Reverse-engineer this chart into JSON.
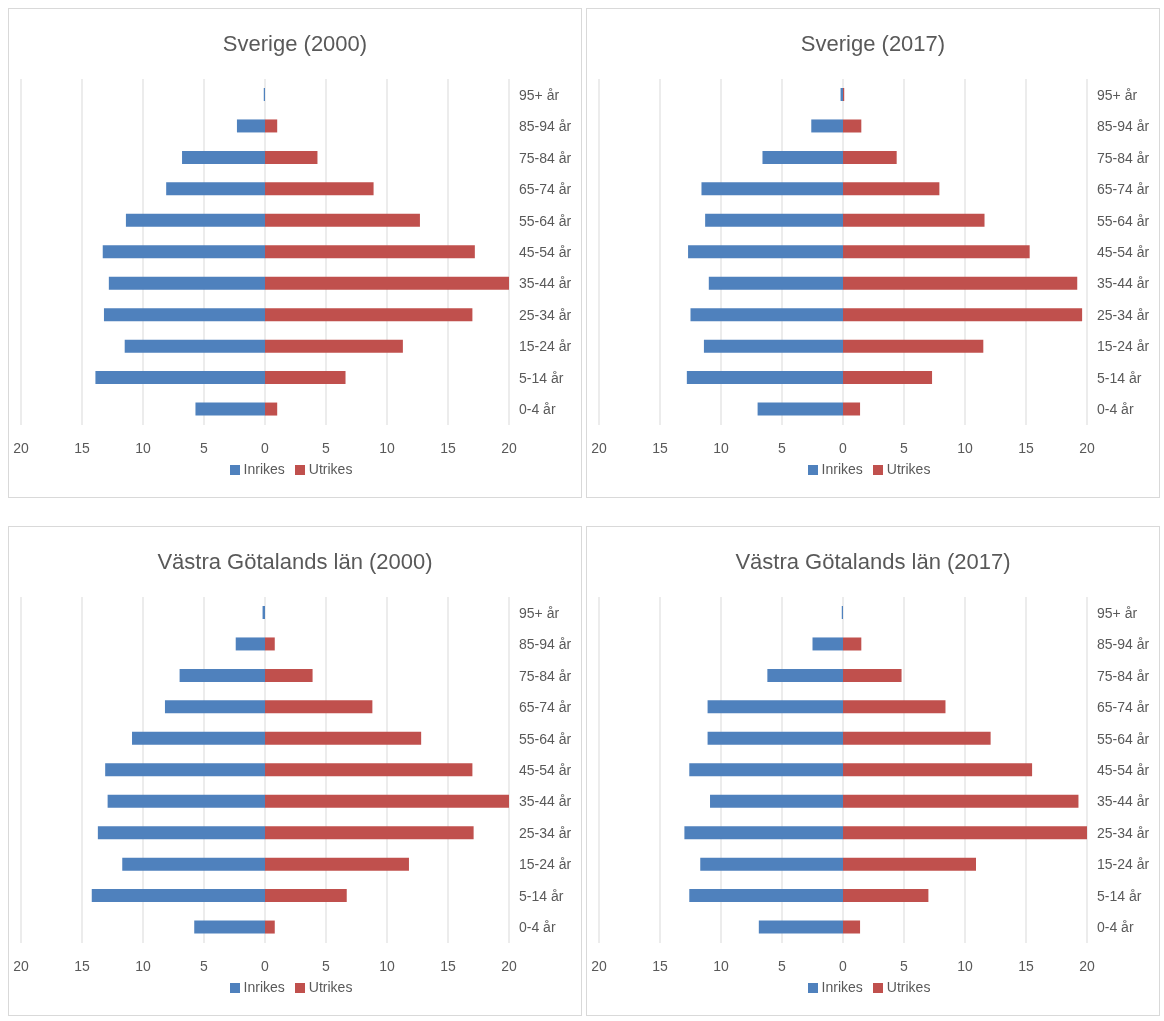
{
  "chart_data": [
    {
      "type": "bar",
      "orientation": "horizontal",
      "stacked": true,
      "title": "Sverige (2000)",
      "categories": [
        "95+ år",
        "85-94 år",
        "75-84 år",
        "65-74 år",
        "55-64 år",
        "45-54 år",
        "35-44 år",
        "25-34 år",
        "15-24 år",
        "5-14 år",
        "0-4 år"
      ],
      "series": [
        {
          "name": "Inrikes",
          "color": "#4f81bd",
          "values": [
            -0.1,
            -2.3,
            -6.8,
            -8.1,
            -11.4,
            -13.3,
            -12.8,
            -13.2,
            -11.5,
            -13.9,
            -5.7
          ]
        },
        {
          "name": "Utrikes",
          "color": "#c0504d",
          "values": [
            0,
            1.0,
            4.3,
            8.9,
            12.7,
            17.2,
            20.0,
            17.0,
            11.3,
            6.6,
            1.0
          ]
        }
      ],
      "xlim": [
        -20,
        20
      ],
      "xticks": [
        {
          "value": -20,
          "label": "20"
        },
        {
          "value": -15,
          "label": "15"
        },
        {
          "value": -10,
          "label": "10"
        },
        {
          "value": -5,
          "label": "5"
        },
        0,
        5,
        10,
        15,
        20
      ],
      "grid": "x",
      "legend": "bottom"
    },
    {
      "type": "bar",
      "orientation": "horizontal",
      "stacked": true,
      "title": "Sverige (2017)",
      "categories": [
        "95+ år",
        "85-94 år",
        "75-84 år",
        "65-74 år",
        "55-64 år",
        "45-54 år",
        "35-44 år",
        "25-34 år",
        "15-24 år",
        "5-14 år",
        "0-4 år"
      ],
      "series": [
        {
          "name": "Inrikes",
          "color": "#4f81bd",
          "values": [
            -0.2,
            -2.6,
            -6.6,
            -11.6,
            -11.3,
            -12.7,
            -11.0,
            -12.5,
            -11.4,
            -12.8,
            -7.0
          ]
        },
        {
          "name": "Utrikes",
          "color": "#c0504d",
          "values": [
            0.1,
            1.5,
            4.4,
            7.9,
            11.6,
            15.3,
            19.2,
            19.6,
            11.5,
            7.3,
            1.4
          ]
        }
      ],
      "xlim": [
        -20,
        20
      ],
      "xticks": [
        {
          "value": -20,
          "label": "20"
        },
        {
          "value": -15,
          "label": "15"
        },
        {
          "value": -10,
          "label": "10"
        },
        {
          "value": -5,
          "label": "5"
        },
        0,
        5,
        10,
        15,
        20
      ],
      "grid": "x",
      "legend": "bottom"
    },
    {
      "type": "bar",
      "orientation": "horizontal",
      "stacked": true,
      "title": "Västra Götalands län (2000)",
      "categories": [
        "95+ år",
        "85-94 år",
        "75-84 år",
        "65-74 år",
        "55-64 år",
        "45-54 år",
        "35-44 år",
        "25-34 år",
        "15-24 år",
        "5-14 år",
        "0-4 år"
      ],
      "series": [
        {
          "name": "Inrikes",
          "color": "#4f81bd",
          "values": [
            -0.2,
            -2.4,
            -7.0,
            -8.2,
            -10.9,
            -13.1,
            -12.9,
            -13.7,
            -11.7,
            -14.2,
            -5.8
          ]
        },
        {
          "name": "Utrikes",
          "color": "#c0504d",
          "values": [
            0,
            0.8,
            3.9,
            8.8,
            12.8,
            17.0,
            20.0,
            17.1,
            11.8,
            6.7,
            0.8
          ]
        }
      ],
      "xlim": [
        -20,
        20
      ],
      "xticks": [
        {
          "value": -20,
          "label": "20"
        },
        {
          "value": -15,
          "label": "15"
        },
        {
          "value": -10,
          "label": "10"
        },
        {
          "value": -5,
          "label": "5"
        },
        0,
        5,
        10,
        15,
        20
      ],
      "grid": "x",
      "legend": "bottom"
    },
    {
      "type": "bar",
      "orientation": "horizontal",
      "stacked": true,
      "title": "Västra Götalands län (2017)",
      "categories": [
        "95+ år",
        "85-94 år",
        "75-84 år",
        "65-74 år",
        "55-64 år",
        "45-54 år",
        "35-44 år",
        "25-34 år",
        "15-24 år",
        "5-14 år",
        "0-4 år"
      ],
      "series": [
        {
          "name": "Inrikes",
          "color": "#4f81bd",
          "values": [
            -0.1,
            -2.5,
            -6.2,
            -11.1,
            -11.1,
            -12.6,
            -10.9,
            -13.0,
            -11.7,
            -12.6,
            -6.9
          ]
        },
        {
          "name": "Utrikes",
          "color": "#c0504d",
          "values": [
            0,
            1.5,
            4.8,
            8.4,
            12.1,
            15.5,
            19.3,
            20.0,
            10.9,
            7.0,
            1.4
          ]
        }
      ],
      "xlim": [
        -20,
        20
      ],
      "xticks": [
        {
          "value": -20,
          "label": "20"
        },
        {
          "value": -15,
          "label": "15"
        },
        {
          "value": -10,
          "label": "10"
        },
        {
          "value": -5,
          "label": "5"
        },
        0,
        5,
        10,
        15,
        20
      ],
      "grid": "x",
      "legend": "bottom"
    }
  ]
}
